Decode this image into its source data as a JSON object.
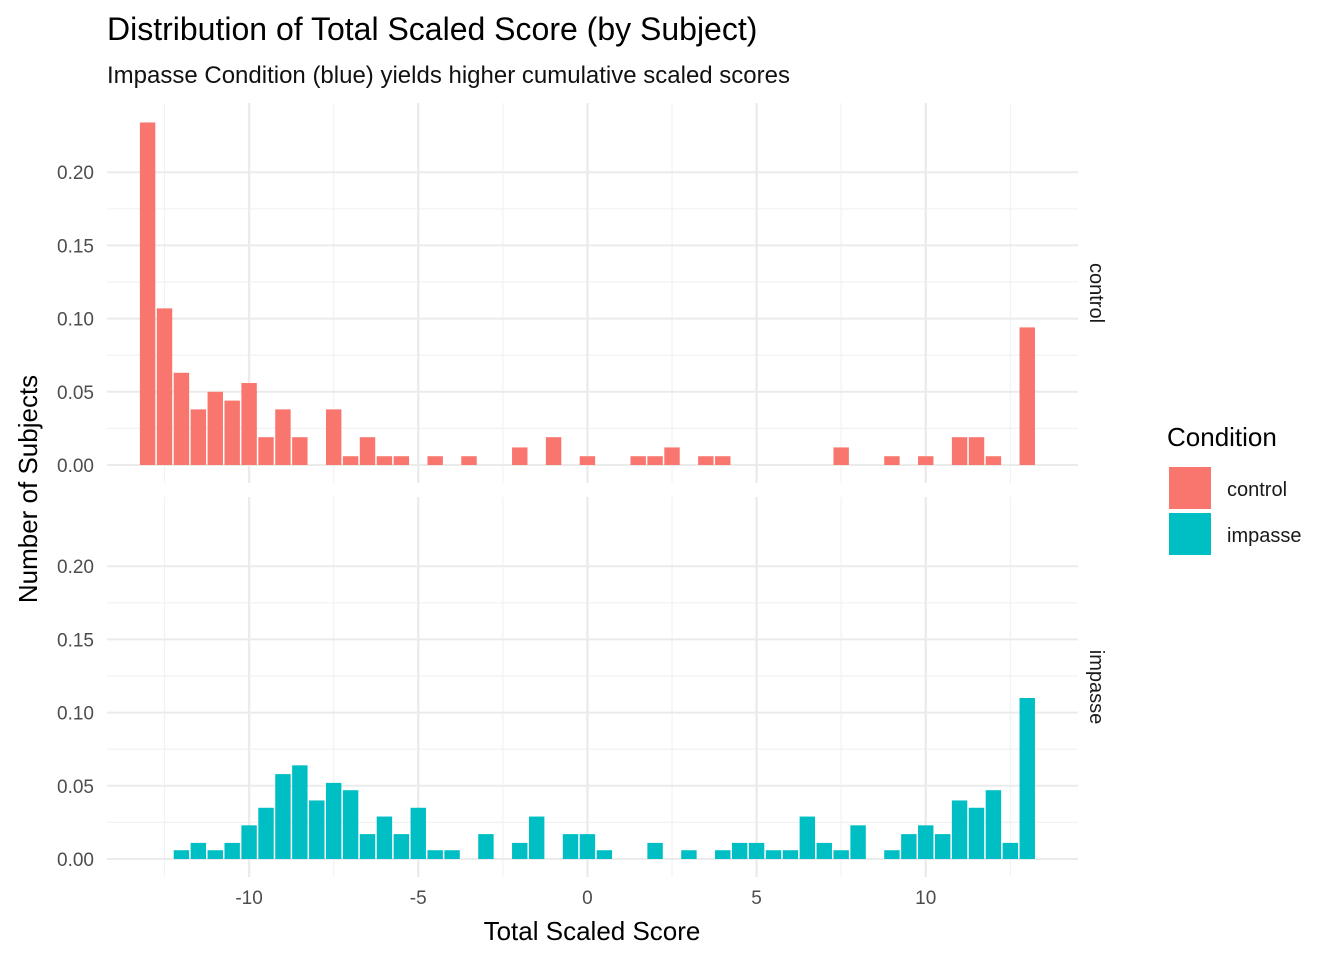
{
  "chart_data": {
    "type": "bar",
    "title": "Distribution of Total Scaled Score (by Subject)",
    "subtitle": "Impasse Condition (blue) yields higher cumulative scaled scores",
    "xlabel": "Total Scaled Score",
    "ylabel": "Number of Subjects",
    "xlim": [
      -14.2,
      14.5
    ],
    "ylim": [
      0,
      0.235
    ],
    "x_ticks": [
      -10,
      -5,
      0,
      5,
      10
    ],
    "x_tick_labels": [
      "-10",
      "-5",
      "0",
      "5",
      "10"
    ],
    "y_ticks": [
      0,
      0.05,
      0.1,
      0.15,
      0.2
    ],
    "y_tick_labels": [
      "0.00",
      "0.05",
      "0.10",
      "0.15",
      "0.20"
    ],
    "grid": true,
    "facets": "rows",
    "legend": {
      "title": "Condition",
      "placement": "right",
      "entries": [
        {
          "label": "control",
          "color": "#F8766D"
        },
        {
          "label": "impasse",
          "color": "#00BFC4"
        }
      ]
    },
    "series": [
      {
        "name": "control",
        "color": "#F8766D",
        "points": [
          [
            -13,
            0.234
          ],
          [
            -12.5,
            0.107
          ],
          [
            -12,
            0.063
          ],
          [
            -11.5,
            0.038
          ],
          [
            -11,
            0.05
          ],
          [
            -10.5,
            0.044
          ],
          [
            -10,
            0.056
          ],
          [
            -9.5,
            0.019
          ],
          [
            -9,
            0.038
          ],
          [
            -8.5,
            0.019
          ],
          [
            -7.5,
            0.038
          ],
          [
            -7,
            0.006
          ],
          [
            -6.5,
            0.019
          ],
          [
            -6,
            0.006
          ],
          [
            -5.5,
            0.006
          ],
          [
            -4.5,
            0.006
          ],
          [
            -3.5,
            0.006
          ],
          [
            -2,
            0.012
          ],
          [
            -1,
            0.019
          ],
          [
            0,
            0.006
          ],
          [
            1.5,
            0.006
          ],
          [
            2,
            0.006
          ],
          [
            2.5,
            0.012
          ],
          [
            3.5,
            0.006
          ],
          [
            4,
            0.006
          ],
          [
            7.5,
            0.012
          ],
          [
            9,
            0.006
          ],
          [
            10,
            0.006
          ],
          [
            11,
            0.019
          ],
          [
            11.5,
            0.019
          ],
          [
            12,
            0.006
          ],
          [
            13,
            0.094
          ]
        ]
      },
      {
        "name": "impasse",
        "color": "#00BFC4",
        "points": [
          [
            -12,
            0.006
          ],
          [
            -11.5,
            0.011
          ],
          [
            -11,
            0.006
          ],
          [
            -10.5,
            0.011
          ],
          [
            -10,
            0.023
          ],
          [
            -9.5,
            0.035
          ],
          [
            -9,
            0.058
          ],
          [
            -8.5,
            0.064
          ],
          [
            -8,
            0.04
          ],
          [
            -7.5,
            0.052
          ],
          [
            -7,
            0.047
          ],
          [
            -6.5,
            0.017
          ],
          [
            -6,
            0.029
          ],
          [
            -5.5,
            0.017
          ],
          [
            -5,
            0.035
          ],
          [
            -4.5,
            0.006
          ],
          [
            -4,
            0.006
          ],
          [
            -3,
            0.017
          ],
          [
            -2,
            0.011
          ],
          [
            -1.5,
            0.029
          ],
          [
            -0.5,
            0.017
          ],
          [
            0,
            0.017
          ],
          [
            0.5,
            0.006
          ],
          [
            2,
            0.011
          ],
          [
            3,
            0.006
          ],
          [
            4,
            0.006
          ],
          [
            4.5,
            0.011
          ],
          [
            5,
            0.011
          ],
          [
            5.5,
            0.006
          ],
          [
            6,
            0.006
          ],
          [
            6.5,
            0.029
          ],
          [
            7,
            0.011
          ],
          [
            7.5,
            0.006
          ],
          [
            8,
            0.023
          ],
          [
            9,
            0.006
          ],
          [
            9.5,
            0.017
          ],
          [
            10,
            0.023
          ],
          [
            10.5,
            0.017
          ],
          [
            11,
            0.04
          ],
          [
            11.5,
            0.035
          ],
          [
            12,
            0.047
          ],
          [
            12.5,
            0.011
          ],
          [
            13,
            0.11
          ]
        ]
      }
    ]
  }
}
